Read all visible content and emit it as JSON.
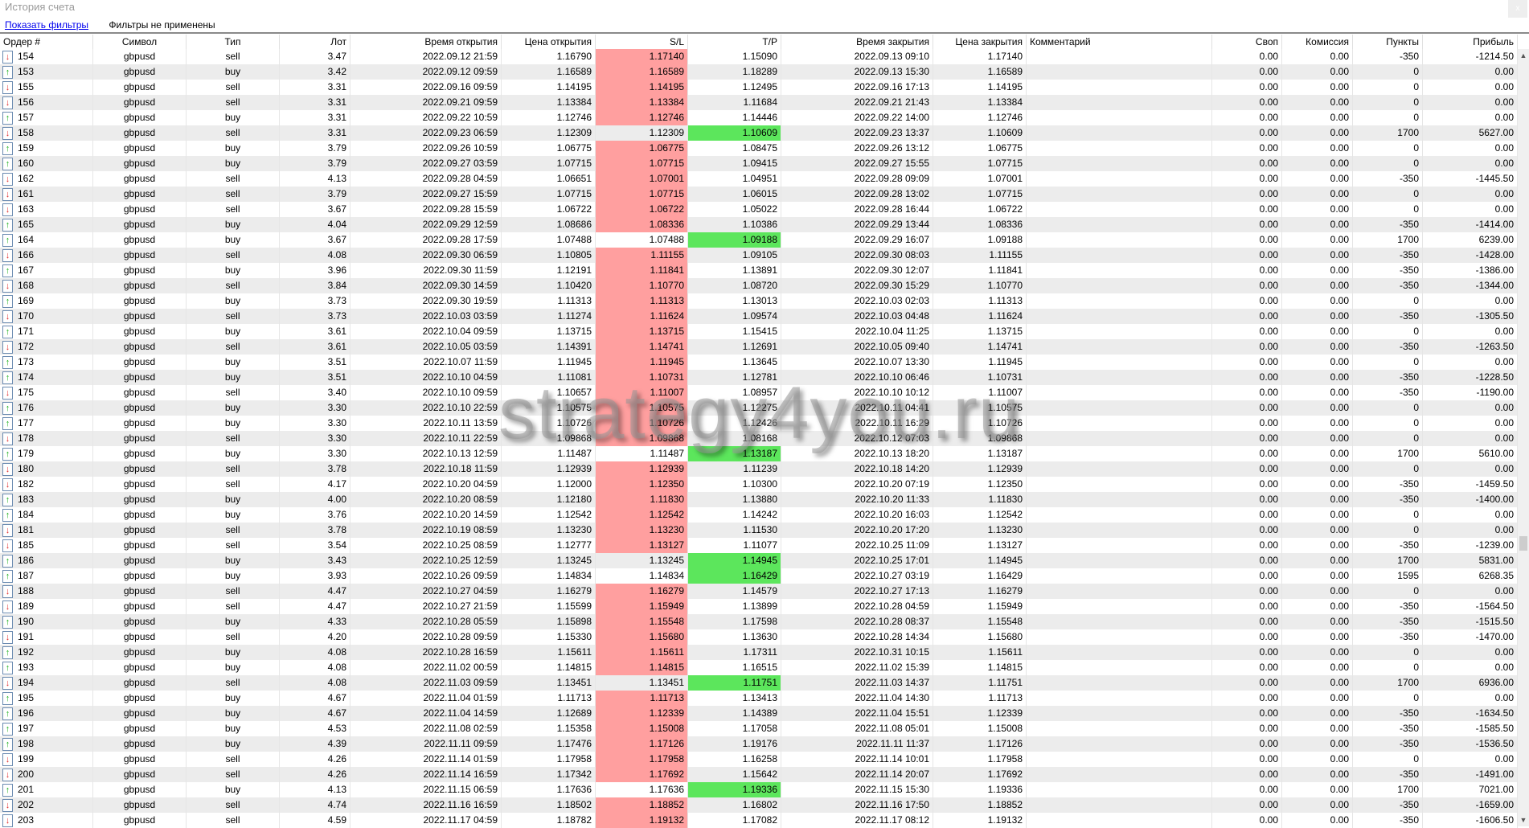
{
  "window": {
    "title": "История счета",
    "close": "x"
  },
  "filters": {
    "show_label": "Показать фильтры",
    "status": "Фильтры не применены"
  },
  "watermark": "strategy4you.ru",
  "colors": {
    "sl_hit": "#ff9f9f",
    "tp_hit": "#5ce65c",
    "row_alt": "#ececec"
  },
  "icons": {
    "buy": "arrow-up-green-icon",
    "sell": "arrow-down-red-icon"
  },
  "columns": [
    "Ордер #",
    "Символ",
    "Тип",
    "Лот",
    "Время открытия",
    "Цена открытия",
    "S/L",
    "T/P",
    "Время закрытия",
    "Цена закрытия",
    "Комментарий",
    "Своп",
    "Комиссия",
    "Пункты",
    "Прибыль"
  ],
  "rows": [
    [
      "154",
      "gbpusd",
      "sell",
      "3.47",
      "2022.09.12 21:59",
      "1.16790",
      "1.17140",
      "1.15090",
      "2022.09.13 09:10",
      "1.17140",
      "",
      "0.00",
      "0.00",
      "-350",
      "-1214.50",
      "sl"
    ],
    [
      "153",
      "gbpusd",
      "buy",
      "3.42",
      "2022.09.12 09:59",
      "1.16589",
      "1.16589",
      "1.18289",
      "2022.09.13 15:30",
      "1.16589",
      "",
      "0.00",
      "0.00",
      "0",
      "0.00",
      "sl"
    ],
    [
      "155",
      "gbpusd",
      "sell",
      "3.31",
      "2022.09.16 09:59",
      "1.14195",
      "1.14195",
      "1.12495",
      "2022.09.16 17:13",
      "1.14195",
      "",
      "0.00",
      "0.00",
      "0",
      "0.00",
      "sl"
    ],
    [
      "156",
      "gbpusd",
      "sell",
      "3.31",
      "2022.09.21 09:59",
      "1.13384",
      "1.13384",
      "1.11684",
      "2022.09.21 21:43",
      "1.13384",
      "",
      "0.00",
      "0.00",
      "0",
      "0.00",
      "sl"
    ],
    [
      "157",
      "gbpusd",
      "buy",
      "3.31",
      "2022.09.22 10:59",
      "1.12746",
      "1.12746",
      "1.14446",
      "2022.09.22 14:00",
      "1.12746",
      "",
      "0.00",
      "0.00",
      "0",
      "0.00",
      "sl"
    ],
    [
      "158",
      "gbpusd",
      "sell",
      "3.31",
      "2022.09.23 06:59",
      "1.12309",
      "1.12309",
      "1.10609",
      "2022.09.23 13:37",
      "1.10609",
      "",
      "0.00",
      "0.00",
      "1700",
      "5627.00",
      "tp"
    ],
    [
      "159",
      "gbpusd",
      "buy",
      "3.79",
      "2022.09.26 10:59",
      "1.06775",
      "1.06775",
      "1.08475",
      "2022.09.26 13:12",
      "1.06775",
      "",
      "0.00",
      "0.00",
      "0",
      "0.00",
      "sl"
    ],
    [
      "160",
      "gbpusd",
      "buy",
      "3.79",
      "2022.09.27 03:59",
      "1.07715",
      "1.07715",
      "1.09415",
      "2022.09.27 15:55",
      "1.07715",
      "",
      "0.00",
      "0.00",
      "0",
      "0.00",
      "sl"
    ],
    [
      "162",
      "gbpusd",
      "sell",
      "4.13",
      "2022.09.28 04:59",
      "1.06651",
      "1.07001",
      "1.04951",
      "2022.09.28 09:09",
      "1.07001",
      "",
      "0.00",
      "0.00",
      "-350",
      "-1445.50",
      "sl"
    ],
    [
      "161",
      "gbpusd",
      "sell",
      "3.79",
      "2022.09.27 15:59",
      "1.07715",
      "1.07715",
      "1.06015",
      "2022.09.28 13:02",
      "1.07715",
      "",
      "0.00",
      "0.00",
      "0",
      "0.00",
      "sl"
    ],
    [
      "163",
      "gbpusd",
      "sell",
      "3.67",
      "2022.09.28 15:59",
      "1.06722",
      "1.06722",
      "1.05022",
      "2022.09.28 16:44",
      "1.06722",
      "",
      "0.00",
      "0.00",
      "0",
      "0.00",
      "sl"
    ],
    [
      "165",
      "gbpusd",
      "buy",
      "4.04",
      "2022.09.29 12:59",
      "1.08686",
      "1.08336",
      "1.10386",
      "2022.09.29 13:44",
      "1.08336",
      "",
      "0.00",
      "0.00",
      "-350",
      "-1414.00",
      "sl"
    ],
    [
      "164",
      "gbpusd",
      "buy",
      "3.67",
      "2022.09.28 17:59",
      "1.07488",
      "1.07488",
      "1.09188",
      "2022.09.29 16:07",
      "1.09188",
      "",
      "0.00",
      "0.00",
      "1700",
      "6239.00",
      "tp"
    ],
    [
      "166",
      "gbpusd",
      "sell",
      "4.08",
      "2022.09.30 06:59",
      "1.10805",
      "1.11155",
      "1.09105",
      "2022.09.30 08:03",
      "1.11155",
      "",
      "0.00",
      "0.00",
      "-350",
      "-1428.00",
      "sl"
    ],
    [
      "167",
      "gbpusd",
      "buy",
      "3.96",
      "2022.09.30 11:59",
      "1.12191",
      "1.11841",
      "1.13891",
      "2022.09.30 12:07",
      "1.11841",
      "",
      "0.00",
      "0.00",
      "-350",
      "-1386.00",
      "sl"
    ],
    [
      "168",
      "gbpusd",
      "sell",
      "3.84",
      "2022.09.30 14:59",
      "1.10420",
      "1.10770",
      "1.08720",
      "2022.09.30 15:29",
      "1.10770",
      "",
      "0.00",
      "0.00",
      "-350",
      "-1344.00",
      "sl"
    ],
    [
      "169",
      "gbpusd",
      "buy",
      "3.73",
      "2022.09.30 19:59",
      "1.11313",
      "1.11313",
      "1.13013",
      "2022.10.03 02:03",
      "1.11313",
      "",
      "0.00",
      "0.00",
      "0",
      "0.00",
      "sl"
    ],
    [
      "170",
      "gbpusd",
      "sell",
      "3.73",
      "2022.10.03 03:59",
      "1.11274",
      "1.11624",
      "1.09574",
      "2022.10.03 04:48",
      "1.11624",
      "",
      "0.00",
      "0.00",
      "-350",
      "-1305.50",
      "sl"
    ],
    [
      "171",
      "gbpusd",
      "buy",
      "3.61",
      "2022.10.04 09:59",
      "1.13715",
      "1.13715",
      "1.15415",
      "2022.10.04 11:25",
      "1.13715",
      "",
      "0.00",
      "0.00",
      "0",
      "0.00",
      "sl"
    ],
    [
      "172",
      "gbpusd",
      "sell",
      "3.61",
      "2022.10.05 03:59",
      "1.14391",
      "1.14741",
      "1.12691",
      "2022.10.05 09:40",
      "1.14741",
      "",
      "0.00",
      "0.00",
      "-350",
      "-1263.50",
      "sl"
    ],
    [
      "173",
      "gbpusd",
      "buy",
      "3.51",
      "2022.10.07 11:59",
      "1.11945",
      "1.11945",
      "1.13645",
      "2022.10.07 13:30",
      "1.11945",
      "",
      "0.00",
      "0.00",
      "0",
      "0.00",
      "sl"
    ],
    [
      "174",
      "gbpusd",
      "buy",
      "3.51",
      "2022.10.10 04:59",
      "1.11081",
      "1.10731",
      "1.12781",
      "2022.10.10 06:46",
      "1.10731",
      "",
      "0.00",
      "0.00",
      "-350",
      "-1228.50",
      "sl"
    ],
    [
      "175",
      "gbpusd",
      "sell",
      "3.40",
      "2022.10.10 09:59",
      "1.10657",
      "1.11007",
      "1.08957",
      "2022.10.10 10:12",
      "1.11007",
      "",
      "0.00",
      "0.00",
      "-350",
      "-1190.00",
      "sl"
    ],
    [
      "176",
      "gbpusd",
      "buy",
      "3.30",
      "2022.10.10 22:59",
      "1.10575",
      "1.10575",
      "1.12275",
      "2022.10.11 04:41",
      "1.10575",
      "",
      "0.00",
      "0.00",
      "0",
      "0.00",
      "sl"
    ],
    [
      "177",
      "gbpusd",
      "buy",
      "3.30",
      "2022.10.11 13:59",
      "1.10726",
      "1.10726",
      "1.12426",
      "2022.10.11 16:29",
      "1.10726",
      "",
      "0.00",
      "0.00",
      "0",
      "0.00",
      "sl"
    ],
    [
      "178",
      "gbpusd",
      "sell",
      "3.30",
      "2022.10.11 22:59",
      "1.09868",
      "1.09868",
      "1.08168",
      "2022.10.12 07:03",
      "1.09868",
      "",
      "0.00",
      "0.00",
      "0",
      "0.00",
      "sl"
    ],
    [
      "179",
      "gbpusd",
      "buy",
      "3.30",
      "2022.10.13 12:59",
      "1.11487",
      "1.11487",
      "1.13187",
      "2022.10.13 18:20",
      "1.13187",
      "",
      "0.00",
      "0.00",
      "1700",
      "5610.00",
      "tp"
    ],
    [
      "180",
      "gbpusd",
      "sell",
      "3.78",
      "2022.10.18 11:59",
      "1.12939",
      "1.12939",
      "1.11239",
      "2022.10.18 14:20",
      "1.12939",
      "",
      "0.00",
      "0.00",
      "0",
      "0.00",
      "sl"
    ],
    [
      "182",
      "gbpusd",
      "sell",
      "4.17",
      "2022.10.20 04:59",
      "1.12000",
      "1.12350",
      "1.10300",
      "2022.10.20 07:19",
      "1.12350",
      "",
      "0.00",
      "0.00",
      "-350",
      "-1459.50",
      "sl"
    ],
    [
      "183",
      "gbpusd",
      "buy",
      "4.00",
      "2022.10.20 08:59",
      "1.12180",
      "1.11830",
      "1.13880",
      "2022.10.20 11:33",
      "1.11830",
      "",
      "0.00",
      "0.00",
      "-350",
      "-1400.00",
      "sl"
    ],
    [
      "184",
      "gbpusd",
      "buy",
      "3.76",
      "2022.10.20 14:59",
      "1.12542",
      "1.12542",
      "1.14242",
      "2022.10.20 16:03",
      "1.12542",
      "",
      "0.00",
      "0.00",
      "0",
      "0.00",
      "sl"
    ],
    [
      "181",
      "gbpusd",
      "sell",
      "3.78",
      "2022.10.19 08:59",
      "1.13230",
      "1.13230",
      "1.11530",
      "2022.10.20 17:20",
      "1.13230",
      "",
      "0.00",
      "0.00",
      "0",
      "0.00",
      "sl"
    ],
    [
      "185",
      "gbpusd",
      "sell",
      "3.54",
      "2022.10.25 08:59",
      "1.12777",
      "1.13127",
      "1.11077",
      "2022.10.25 11:09",
      "1.13127",
      "",
      "0.00",
      "0.00",
      "-350",
      "-1239.00",
      "sl"
    ],
    [
      "186",
      "gbpusd",
      "buy",
      "3.43",
      "2022.10.25 12:59",
      "1.13245",
      "1.13245",
      "1.14945",
      "2022.10.25 17:01",
      "1.14945",
      "",
      "0.00",
      "0.00",
      "1700",
      "5831.00",
      "tp"
    ],
    [
      "187",
      "gbpusd",
      "buy",
      "3.93",
      "2022.10.26 09:59",
      "1.14834",
      "1.14834",
      "1.16429",
      "2022.10.27 03:19",
      "1.16429",
      "",
      "0.00",
      "0.00",
      "1595",
      "6268.35",
      "tp"
    ],
    [
      "188",
      "gbpusd",
      "sell",
      "4.47",
      "2022.10.27 04:59",
      "1.16279",
      "1.16279",
      "1.14579",
      "2022.10.27 17:13",
      "1.16279",
      "",
      "0.00",
      "0.00",
      "0",
      "0.00",
      "sl"
    ],
    [
      "189",
      "gbpusd",
      "sell",
      "4.47",
      "2022.10.27 21:59",
      "1.15599",
      "1.15949",
      "1.13899",
      "2022.10.28 04:59",
      "1.15949",
      "",
      "0.00",
      "0.00",
      "-350",
      "-1564.50",
      "sl"
    ],
    [
      "190",
      "gbpusd",
      "buy",
      "4.33",
      "2022.10.28 05:59",
      "1.15898",
      "1.15548",
      "1.17598",
      "2022.10.28 08:37",
      "1.15548",
      "",
      "0.00",
      "0.00",
      "-350",
      "-1515.50",
      "sl"
    ],
    [
      "191",
      "gbpusd",
      "sell",
      "4.20",
      "2022.10.28 09:59",
      "1.15330",
      "1.15680",
      "1.13630",
      "2022.10.28 14:34",
      "1.15680",
      "",
      "0.00",
      "0.00",
      "-350",
      "-1470.00",
      "sl"
    ],
    [
      "192",
      "gbpusd",
      "buy",
      "4.08",
      "2022.10.28 16:59",
      "1.15611",
      "1.15611",
      "1.17311",
      "2022.10.31 10:15",
      "1.15611",
      "",
      "0.00",
      "0.00",
      "0",
      "0.00",
      "sl"
    ],
    [
      "193",
      "gbpusd",
      "buy",
      "4.08",
      "2022.11.02 00:59",
      "1.14815",
      "1.14815",
      "1.16515",
      "2022.11.02 15:39",
      "1.14815",
      "",
      "0.00",
      "0.00",
      "0",
      "0.00",
      "sl"
    ],
    [
      "194",
      "gbpusd",
      "sell",
      "4.08",
      "2022.11.03 09:59",
      "1.13451",
      "1.13451",
      "1.11751",
      "2022.11.03 14:37",
      "1.11751",
      "",
      "0.00",
      "0.00",
      "1700",
      "6936.00",
      "tp"
    ],
    [
      "195",
      "gbpusd",
      "buy",
      "4.67",
      "2022.11.04 01:59",
      "1.11713",
      "1.11713",
      "1.13413",
      "2022.11.04 14:30",
      "1.11713",
      "",
      "0.00",
      "0.00",
      "0",
      "0.00",
      "sl"
    ],
    [
      "196",
      "gbpusd",
      "buy",
      "4.67",
      "2022.11.04 14:59",
      "1.12689",
      "1.12339",
      "1.14389",
      "2022.11.04 15:51",
      "1.12339",
      "",
      "0.00",
      "0.00",
      "-350",
      "-1634.50",
      "sl"
    ],
    [
      "197",
      "gbpusd",
      "buy",
      "4.53",
      "2022.11.08 02:59",
      "1.15358",
      "1.15008",
      "1.17058",
      "2022.11.08 05:01",
      "1.15008",
      "",
      "0.00",
      "0.00",
      "-350",
      "-1585.50",
      "sl"
    ],
    [
      "198",
      "gbpusd",
      "buy",
      "4.39",
      "2022.11.11 09:59",
      "1.17476",
      "1.17126",
      "1.19176",
      "2022.11.11 11:37",
      "1.17126",
      "",
      "0.00",
      "0.00",
      "-350",
      "-1536.50",
      "sl"
    ],
    [
      "199",
      "gbpusd",
      "sell",
      "4.26",
      "2022.11.14 01:59",
      "1.17958",
      "1.17958",
      "1.16258",
      "2022.11.14 10:01",
      "1.17958",
      "",
      "0.00",
      "0.00",
      "0",
      "0.00",
      "sl"
    ],
    [
      "200",
      "gbpusd",
      "sell",
      "4.26",
      "2022.11.14 16:59",
      "1.17342",
      "1.17692",
      "1.15642",
      "2022.11.14 20:07",
      "1.17692",
      "",
      "0.00",
      "0.00",
      "-350",
      "-1491.00",
      "sl"
    ],
    [
      "201",
      "gbpusd",
      "buy",
      "4.13",
      "2022.11.15 06:59",
      "1.17636",
      "1.17636",
      "1.19336",
      "2022.11.15 15:30",
      "1.19336",
      "",
      "0.00",
      "0.00",
      "1700",
      "7021.00",
      "tp"
    ],
    [
      "202",
      "gbpusd",
      "sell",
      "4.74",
      "2022.11.16 16:59",
      "1.18502",
      "1.18852",
      "1.16802",
      "2022.11.16 17:50",
      "1.18852",
      "",
      "0.00",
      "0.00",
      "-350",
      "-1659.00",
      "sl"
    ],
    [
      "203",
      "gbpusd",
      "sell",
      "4.59",
      "2022.11.17 04:59",
      "1.18782",
      "1.19132",
      "1.17082",
      "2022.11.17 08:12",
      "1.19132",
      "",
      "0.00",
      "0.00",
      "-350",
      "-1606.50",
      "sl"
    ]
  ]
}
